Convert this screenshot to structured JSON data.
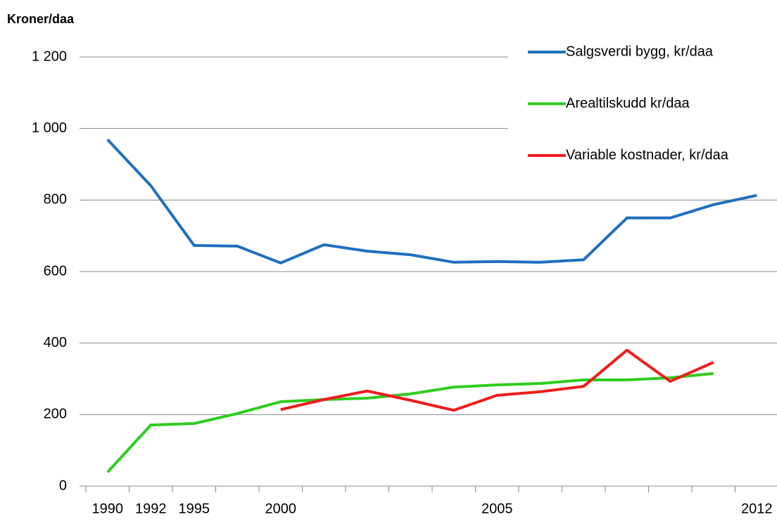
{
  "chart_data": {
    "type": "line",
    "y_label": "Kroner/daa",
    "categories": [
      "1990",
      "1992",
      "1995",
      null,
      "2000",
      null,
      null,
      null,
      null,
      "2005",
      null,
      null,
      null,
      null,
      null,
      "2012"
    ],
    "series": [
      {
        "name": "Salgsverdi bygg, kr/daa",
        "color": "#1f6fbf",
        "values": [
          969,
          840,
          673,
          671,
          624,
          675,
          657,
          647,
          626,
          628,
          626,
          633,
          750,
          750,
          787,
          813
        ]
      },
      {
        "name": "Arealtilskudd kr/daa",
        "color": "#2ecc1f",
        "values": [
          39,
          171,
          175,
          203,
          236,
          242,
          246,
          258,
          277,
          283,
          287,
          297,
          297,
          303,
          315,
          null
        ]
      },
      {
        "name": "Variable kostnader, kr/daa",
        "color": "#ee1c1c",
        "values": [
          null,
          null,
          null,
          null,
          214,
          242,
          266,
          240,
          212,
          254,
          264,
          279,
          380,
          293,
          346,
          null
        ]
      }
    ],
    "ylim": [
      0,
      1200
    ],
    "yticks": [
      0,
      200,
      400,
      600,
      800,
      {
        "value": 1000,
        "label": "1 000"
      },
      {
        "value": 1200,
        "label": "1 200"
      }
    ],
    "grid": true,
    "legend": "upper right"
  }
}
